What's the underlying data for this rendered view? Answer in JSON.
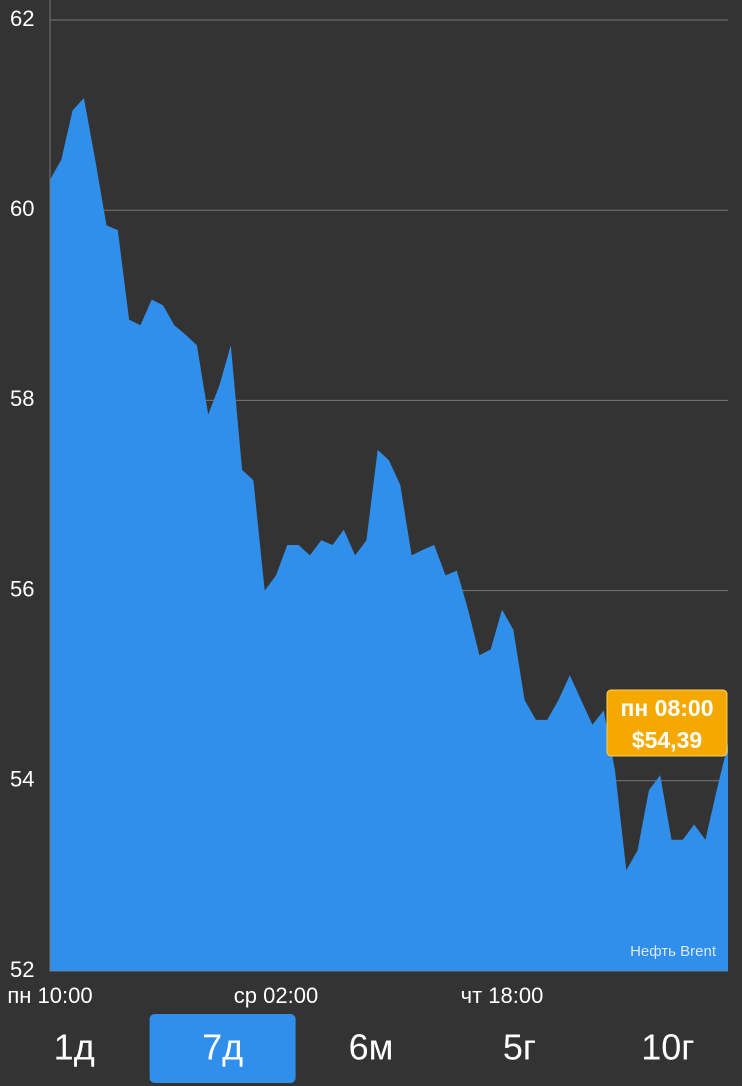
{
  "chart_data": {
    "type": "area",
    "categories": [
      "пн 10:00",
      null,
      null,
      null,
      null,
      null,
      null,
      null,
      null,
      null,
      null,
      null,
      null,
      null,
      null,
      null,
      null,
      null,
      null,
      null,
      "ср 02:00",
      null,
      null,
      null,
      null,
      null,
      null,
      null,
      null,
      null,
      null,
      null,
      null,
      null,
      null,
      null,
      null,
      null,
      null,
      null,
      "чт 18:00",
      null,
      null,
      null,
      null,
      null,
      null,
      null,
      null,
      null,
      null,
      null,
      null,
      null,
      null,
      null,
      null,
      null,
      null,
      null,
      null
    ],
    "series": [
      {
        "name": "Нефть Brent",
        "color": "#2f8fea",
        "values": [
          60.32,
          60.53,
          61.05,
          61.18,
          60.53,
          59.84,
          59.79,
          58.85,
          58.79,
          59.06,
          59.0,
          58.79,
          58.69,
          58.58,
          57.85,
          58.16,
          58.58,
          57.27,
          57.16,
          56.0,
          56.16,
          56.48,
          56.48,
          56.37,
          56.53,
          56.48,
          56.64,
          56.37,
          56.53,
          57.48,
          57.37,
          57.11,
          56.37,
          56.43,
          56.48,
          56.16,
          56.21,
          55.8,
          55.32,
          55.38,
          55.8,
          55.59,
          54.85,
          54.64,
          54.64,
          54.85,
          55.11,
          54.85,
          54.59,
          54.74,
          54.11,
          53.06,
          53.27,
          53.9,
          54.06,
          53.38,
          53.38,
          53.54,
          53.38,
          53.9,
          54.39
        ]
      }
    ],
    "ylim": [
      52,
      62
    ],
    "yticks": [
      52,
      54,
      56,
      58,
      60,
      62
    ],
    "grid": true,
    "tooltip": {
      "time": "пн 08:00",
      "price": "$54,39"
    }
  },
  "tabs": [
    "1д",
    "7д",
    "6м",
    "5г",
    "10г"
  ],
  "selected_tab": 1
}
